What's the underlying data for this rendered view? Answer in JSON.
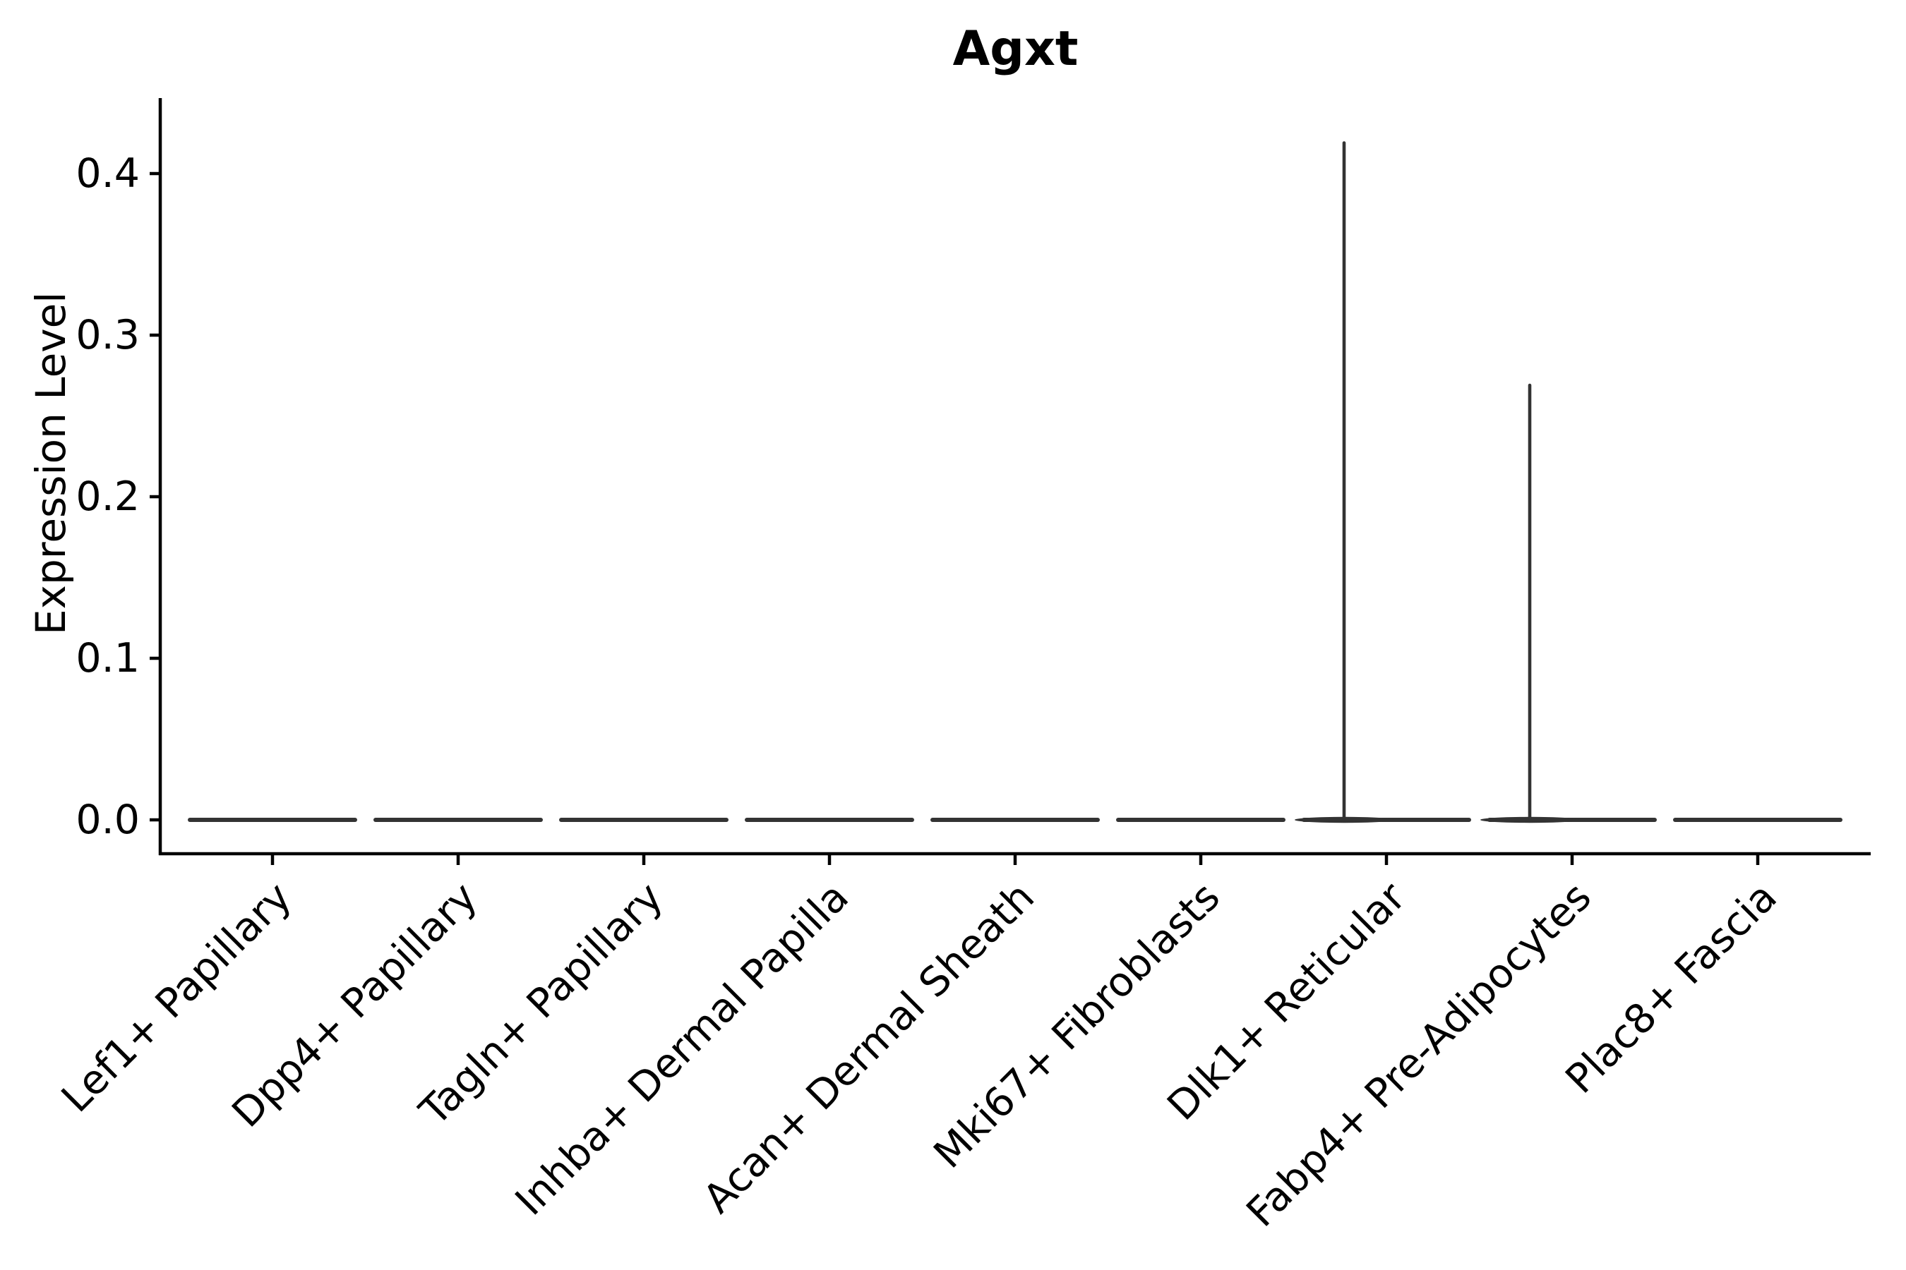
{
  "figure": {
    "background_color": "#FFFFFF",
    "title": "Agxt",
    "y_axis": {
      "label": "Expression Level",
      "tick_labels": [
        "0.0",
        "0.1",
        "0.2",
        "0.3",
        "0.4"
      ]
    },
    "x_axis": {
      "label": "",
      "tick_labels": [
        "Lef1+ Papillary",
        "Dpp4+ Papillary",
        "Tagln+ Papillary",
        "Inhba+ Dermal Papilla",
        "Acan+ Dermal Sheath",
        "Mki67+ Fibroblasts",
        "Dlk1+ Reticular",
        "Fabp4+ Pre-Adipocytes",
        "Plac8+ Fascia"
      ]
    }
  },
  "chart_data": {
    "type": "violin",
    "title": "Agxt",
    "xlabel": "",
    "ylabel": "Expression Level",
    "categories": [
      "Lef1+ Papillary",
      "Dpp4+ Papillary",
      "Tagln+ Papillary",
      "Inhba+ Dermal Papilla",
      "Acan+ Dermal Sheath",
      "Mki67+ Fibroblasts",
      "Dlk1+ Reticular",
      "Fabp4+ Pre-Adipocytes",
      "Plac8+ Fascia"
    ],
    "series": [
      {
        "name": "max_expression_spike",
        "values": [
          0.0,
          0.0,
          0.0,
          0.0,
          0.0,
          0.0,
          0.42,
          0.27,
          0.0
        ]
      },
      {
        "name": "bulk_expression_mode",
        "values": [
          0.0,
          0.0,
          0.0,
          0.0,
          0.0,
          0.0,
          0.0,
          0.0,
          0.0
        ]
      }
    ],
    "y_ticks": [
      0.0,
      0.1,
      0.2,
      0.3,
      0.4
    ],
    "y_tick_labels": [
      "0.0",
      "0.1",
      "0.2",
      "0.3",
      "0.4"
    ],
    "ylim": [
      -0.021,
      0.445
    ],
    "grid": false,
    "legend": "none",
    "x_tick_rotation_deg": 45,
    "colors": {
      "violin": "#333333",
      "axis": "#000000",
      "text": "#000000",
      "background": "#FFFFFF"
    }
  }
}
